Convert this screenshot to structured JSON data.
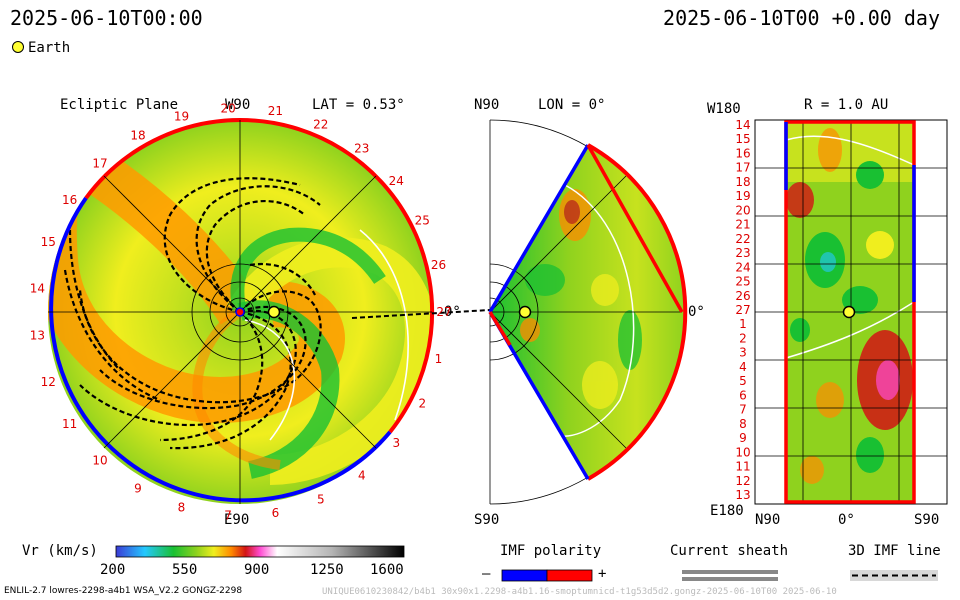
{
  "header": {
    "time_left": "2025-06-10T00:00",
    "time_right": "2025-06-10T00 +0.00 day",
    "legend_label": "Earth"
  },
  "ecliptic": {
    "title": "Ecliptic Plane",
    "top_label": "W90",
    "bottom_label": "E90",
    "right_label": "0°",
    "lat_label": "LAT = 0.53°",
    "carrington_ticks": [
      "1",
      "2",
      "3",
      "4",
      "5",
      "6",
      "7",
      "8",
      "9",
      "10",
      "11",
      "12",
      "13",
      "14",
      "15",
      "16",
      "17",
      "18",
      "19",
      "20",
      "21",
      "22",
      "23",
      "24",
      "25",
      "26",
      "27"
    ]
  },
  "meridional": {
    "top_label": "N90",
    "bottom_label": "S90",
    "right_label": "0°",
    "lon_label": "LON = 0°"
  },
  "radial": {
    "top_left_label": "W180",
    "bottom_left_label": "E180",
    "r_label": "R = 1.0 AU",
    "y_ticks": [
      "14",
      "15",
      "16",
      "17",
      "18",
      "19",
      "20",
      "21",
      "22",
      "23",
      "24",
      "25",
      "26",
      "27",
      "1",
      "2",
      "3",
      "4",
      "5",
      "6",
      "7",
      "8",
      "9",
      "10",
      "11",
      "12",
      "13"
    ],
    "x_ticks": [
      "N90",
      "0°",
      "S90"
    ]
  },
  "colorbar": {
    "label": "Vr (km/s)",
    "ticks": [
      "200",
      "550",
      "900",
      "1250",
      "1600"
    ],
    "colors": [
      "#3b3bd6",
      "#24c8ff",
      "#19c032",
      "#8fd21e",
      "#f0ee1e",
      "#ff8a00",
      "#d21414",
      "#ff4bd2",
      "#ffffff",
      "#b4b4b4",
      "#000000"
    ]
  },
  "imf_legend": {
    "label": "IMF polarity",
    "minus": "–",
    "plus": "+",
    "neg_color": "#0000ff",
    "pos_color": "#ff0000"
  },
  "sheath_legend": {
    "label": "Current sheath"
  },
  "imf3d_legend": {
    "label": "3D IMF line"
  },
  "footer": {
    "model_info": "ENLIL-2.7 lowres-2298-a4b1 WSA_V2.2 GONGZ-2298",
    "watermark": "UNIQUE0610230842/b4b1 30x90x1.2298-a4b1.16-smoptumnicd-t1g53d5d2.gongz-2025-06-10T00   2025-06-10"
  },
  "chart_data": [
    {
      "type": "heatmap",
      "panel": "ecliptic-plane",
      "title": "Ecliptic Plane",
      "lat_deg": 0.53,
      "colorbar_range": [
        200,
        1600
      ],
      "units": "km/s"
    },
    {
      "type": "heatmap",
      "panel": "meridional-plane",
      "lon_deg": 0,
      "lat_range": [
        "N90",
        "S90"
      ]
    },
    {
      "type": "heatmap",
      "panel": "radial-map",
      "r_au": 1.0,
      "x_range": [
        "N90",
        "S90"
      ],
      "y_range": [
        "W180",
        "E180"
      ]
    }
  ]
}
